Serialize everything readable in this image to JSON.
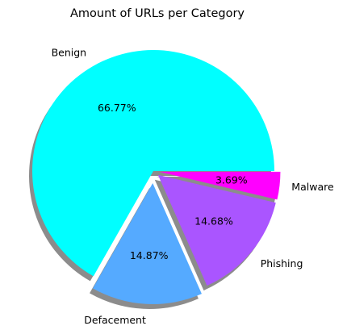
{
  "chart_data": {
    "type": "pie",
    "title": "Amount of URLs per Category",
    "start_angle_deg": 0,
    "direction": "counterclockwise",
    "shadow": true,
    "slices": [
      {
        "label": "Benign",
        "value": 66.77,
        "pct_label": "66.77%",
        "color": "#00ffff",
        "explode": 0.0
      },
      {
        "label": "Defacement",
        "value": 14.87,
        "pct_label": "14.87%",
        "color": "#55aaff",
        "explode": 0.1
      },
      {
        "label": "Phishing",
        "value": 14.68,
        "pct_label": "14.68%",
        "color": "#aa55ff",
        "explode": 0.05
      },
      {
        "label": "Malware",
        "value": 3.69,
        "pct_label": "3.69%",
        "color": "#ff00ff",
        "explode": 0.05
      }
    ]
  }
}
